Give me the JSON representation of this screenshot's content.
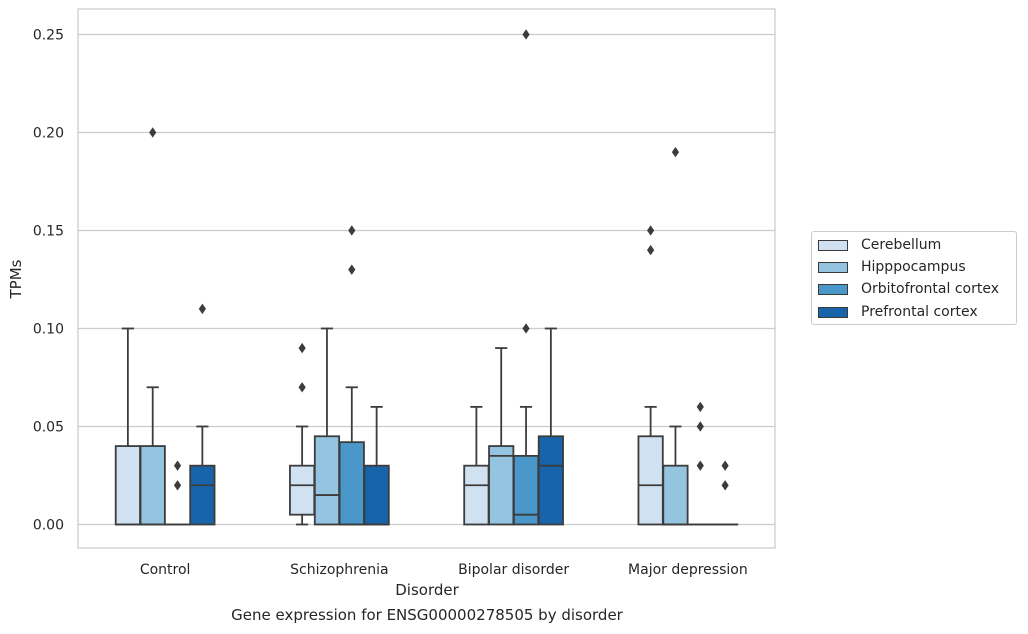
{
  "chart_data": {
    "type": "boxplot",
    "xlabel": "Disorder",
    "ylabel": "TPMs",
    "caption": "Gene expression for ENSG00000278505 by disorder",
    "ylim": [
      -0.012,
      0.263
    ],
    "yticks": [
      0.0,
      0.05,
      0.1,
      0.15,
      0.2,
      0.25
    ],
    "ytick_labels": [
      "0.00",
      "0.05",
      "0.10",
      "0.15",
      "0.20",
      "0.25"
    ],
    "grid": true,
    "legend_position": "right",
    "categories": [
      "Control",
      "Schizophrenia",
      "Bipolar disorder",
      "Major depression"
    ],
    "series": [
      {
        "name": "Cerebellum",
        "color": "#d0e1f2",
        "boxes": [
          {
            "q1": 0.0,
            "median": 0.0,
            "q3": 0.04,
            "whislo": 0.0,
            "whishi": 0.1,
            "fliers": []
          },
          {
            "q1": 0.005,
            "median": 0.02,
            "q3": 0.03,
            "whislo": 0.0,
            "whishi": 0.05,
            "fliers": [
              0.07,
              0.09
            ]
          },
          {
            "q1": 0.0,
            "median": 0.02,
            "q3": 0.03,
            "whislo": 0.0,
            "whishi": 0.06,
            "fliers": []
          },
          {
            "q1": 0.0,
            "median": 0.02,
            "q3": 0.045,
            "whislo": 0.0,
            "whishi": 0.06,
            "fliers": [
              0.14,
              0.15
            ]
          }
        ]
      },
      {
        "name": "Hipppocampus",
        "color": "#94c4df",
        "boxes": [
          {
            "q1": 0.0,
            "median": 0.0,
            "q3": 0.04,
            "whislo": 0.0,
            "whishi": 0.07,
            "fliers": [
              0.2
            ]
          },
          {
            "q1": 0.0,
            "median": 0.015,
            "q3": 0.045,
            "whislo": 0.0,
            "whishi": 0.1,
            "fliers": []
          },
          {
            "q1": 0.0,
            "median": 0.035,
            "q3": 0.04,
            "whislo": 0.0,
            "whishi": 0.09,
            "fliers": []
          },
          {
            "q1": 0.0,
            "median": 0.0,
            "q3": 0.03,
            "whislo": 0.0,
            "whishi": 0.05,
            "fliers": [
              0.19
            ]
          }
        ]
      },
      {
        "name": "Orbitofrontal cortex",
        "color": "#4a98c9",
        "boxes": [
          {
            "q1": 0.0,
            "median": 0.0,
            "q3": 0.0,
            "whislo": 0.0,
            "whishi": 0.0,
            "fliers": [
              0.02,
              0.03
            ]
          },
          {
            "q1": 0.0,
            "median": 0.0,
            "q3": 0.042,
            "whislo": 0.0,
            "whishi": 0.07,
            "fliers": [
              0.13,
              0.15
            ]
          },
          {
            "q1": 0.0,
            "median": 0.005,
            "q3": 0.035,
            "whislo": 0.0,
            "whishi": 0.06,
            "fliers": [
              0.1,
              0.25
            ]
          },
          {
            "q1": 0.0,
            "median": 0.0,
            "q3": 0.0,
            "whislo": 0.0,
            "whishi": 0.0,
            "fliers": [
              0.03,
              0.05,
              0.06
            ]
          }
        ]
      },
      {
        "name": "Prefrontal cortex",
        "color": "#1764ab",
        "boxes": [
          {
            "q1": 0.0,
            "median": 0.02,
            "q3": 0.03,
            "whislo": 0.0,
            "whishi": 0.05,
            "fliers": [
              0.11
            ]
          },
          {
            "q1": 0.0,
            "median": 0.0,
            "q3": 0.03,
            "whislo": 0.0,
            "whishi": 0.06,
            "fliers": []
          },
          {
            "q1": 0.0,
            "median": 0.03,
            "q3": 0.045,
            "whislo": 0.0,
            "whishi": 0.1,
            "fliers": []
          },
          {
            "q1": 0.0,
            "median": 0.0,
            "q3": 0.0,
            "whislo": 0.0,
            "whishi": 0.0,
            "fliers": [
              0.02,
              0.03
            ]
          }
        ]
      }
    ]
  }
}
